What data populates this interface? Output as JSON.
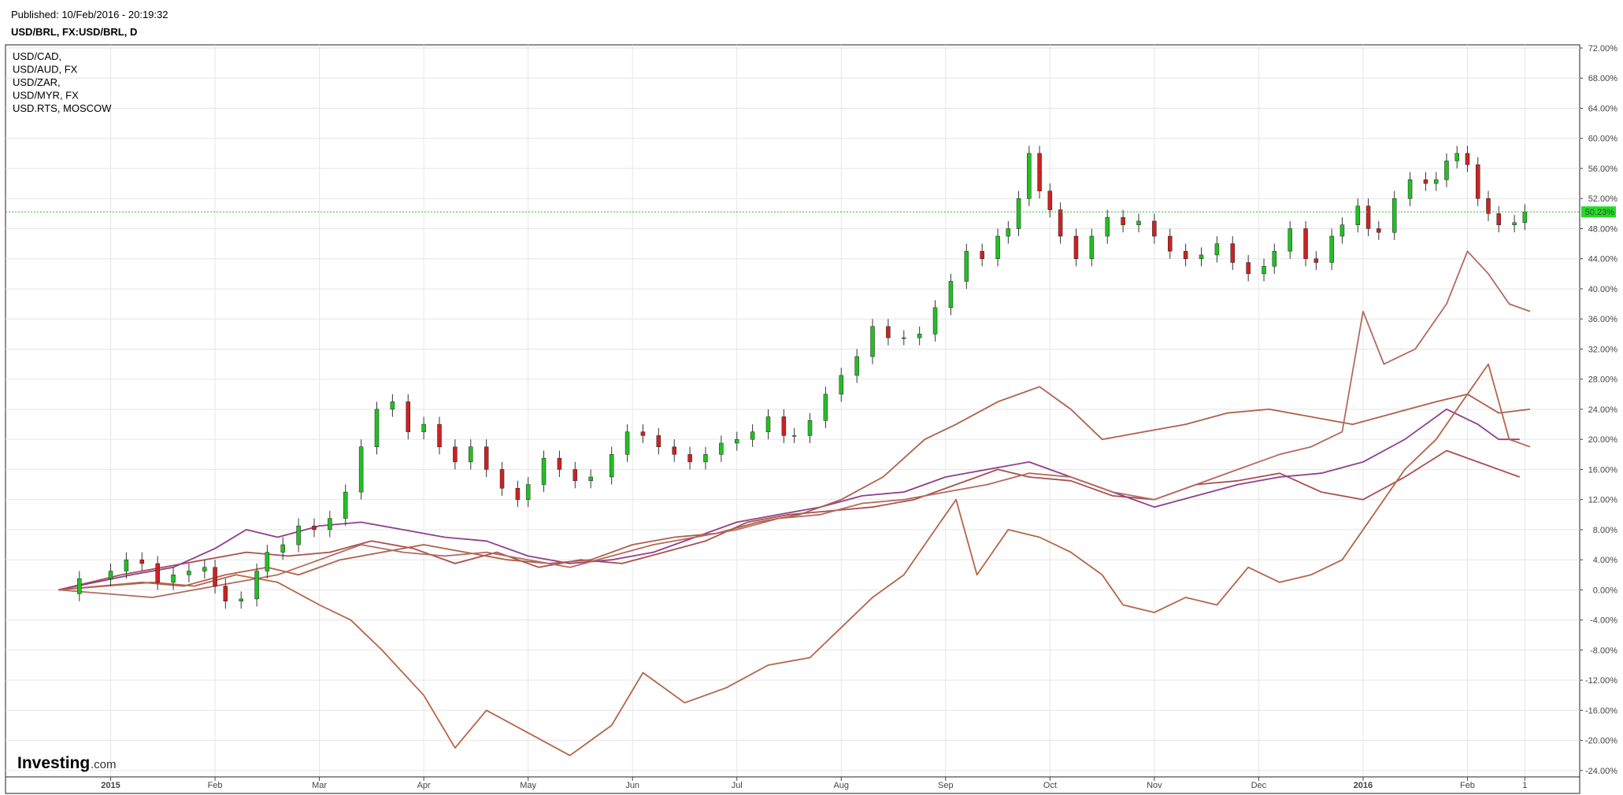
{
  "header": {
    "published": "Published: 10/Feb/2016 - 20:19:32",
    "symbol": "USD/BRL, FX:USD/BRL, D"
  },
  "logo": {
    "main": "Investing",
    "sub": ".com"
  },
  "current_badge": "50.23%",
  "chart_data": {
    "type": "candlestick+line",
    "title": "USD/BRL, FX:USD/BRL, D",
    "y_axis": {
      "unit": "%",
      "ylim": [
        -26,
        72
      ],
      "ticks": [
        "72.00%",
        "68.00%",
        "64.00%",
        "60.00%",
        "56.00%",
        "52.00%",
        "48.00%",
        "44.00%",
        "40.00%",
        "36.00%",
        "32.00%",
        "28.00%",
        "24.00%",
        "20.00%",
        "16.00%",
        "12.00%",
        "8.00%",
        "4.00%",
        "0.00%",
        "-4.00%",
        "-8.00%",
        "-12.00%",
        "-16.00%",
        "-20.00%",
        "-24.00%"
      ],
      "position": "right"
    },
    "x_axis": {
      "ticks": [
        {
          "label": "2015",
          "bold": true,
          "month": 0
        },
        {
          "label": "Feb",
          "bold": false,
          "month": 1
        },
        {
          "label": "Mar",
          "bold": false,
          "month": 2
        },
        {
          "label": "Apr",
          "bold": false,
          "month": 3
        },
        {
          "label": "May",
          "bold": false,
          "month": 4
        },
        {
          "label": "Jun",
          "bold": false,
          "month": 5
        },
        {
          "label": "Jul",
          "bold": false,
          "month": 6
        },
        {
          "label": "Aug",
          "bold": false,
          "month": 7
        },
        {
          "label": "Sep",
          "bold": false,
          "month": 8
        },
        {
          "label": "Oct",
          "bold": false,
          "month": 9
        },
        {
          "label": "Nov",
          "bold": false,
          "month": 10
        },
        {
          "label": "Dec",
          "bold": false,
          "month": 11
        },
        {
          "label": "2016",
          "bold": true,
          "month": 12
        },
        {
          "label": "Feb",
          "bold": false,
          "month": 13
        },
        {
          "label": "1",
          "bold": false,
          "month": 13.55
        }
      ]
    },
    "grid": true,
    "legend_position": "top-left",
    "current_value": 50.23,
    "candles": {
      "name": "USD/BRL",
      "up_color": "#22c022",
      "down_color": "#cc2222",
      "closes": [
        [
          -0.8,
          -0.5
        ],
        [
          -0.3,
          1.5
        ],
        [
          0.0,
          2.5
        ],
        [
          0.15,
          4.0
        ],
        [
          0.3,
          3.5
        ],
        [
          0.45,
          1.0
        ],
        [
          0.6,
          2.0
        ],
        [
          0.75,
          2.5
        ],
        [
          0.9,
          3.0
        ],
        [
          1.0,
          0.5
        ],
        [
          1.1,
          -1.5
        ],
        [
          1.25,
          -1.2
        ],
        [
          1.4,
          2.5
        ],
        [
          1.5,
          5.0
        ],
        [
          1.65,
          6.0
        ],
        [
          1.8,
          8.5
        ],
        [
          1.95,
          8.0
        ],
        [
          2.1,
          9.5
        ],
        [
          2.25,
          13.0
        ],
        [
          2.4,
          19.0
        ],
        [
          2.55,
          24.0
        ],
        [
          2.7,
          25.0
        ],
        [
          2.85,
          21.0
        ],
        [
          3.0,
          22.0
        ],
        [
          3.15,
          19.0
        ],
        [
          3.3,
          17.0
        ],
        [
          3.45,
          19.0
        ],
        [
          3.6,
          16.0
        ],
        [
          3.75,
          13.5
        ],
        [
          3.9,
          12.0
        ],
        [
          4.0,
          14.0
        ],
        [
          4.15,
          17.5
        ],
        [
          4.3,
          16.0
        ],
        [
          4.45,
          14.5
        ],
        [
          4.6,
          15.0
        ],
        [
          4.8,
          18.0
        ],
        [
          4.95,
          21.0
        ],
        [
          5.1,
          20.5
        ],
        [
          5.25,
          19.0
        ],
        [
          5.4,
          18.0
        ],
        [
          5.55,
          17.0
        ],
        [
          5.7,
          18.0
        ],
        [
          5.85,
          19.5
        ],
        [
          6.0,
          20.0
        ],
        [
          6.15,
          21.0
        ],
        [
          6.3,
          23.0
        ],
        [
          6.45,
          20.5
        ],
        [
          6.55,
          20.5
        ],
        [
          6.7,
          22.5
        ],
        [
          6.85,
          26.0
        ],
        [
          7.0,
          28.5
        ],
        [
          7.15,
          31.0
        ],
        [
          7.3,
          35.0
        ],
        [
          7.45,
          33.5
        ],
        [
          7.6,
          33.5
        ],
        [
          7.75,
          34.0
        ],
        [
          7.9,
          37.5
        ],
        [
          8.05,
          41.0
        ],
        [
          8.2,
          45.0
        ],
        [
          8.35,
          44.0
        ],
        [
          8.5,
          47.0
        ],
        [
          8.6,
          48.0
        ],
        [
          8.7,
          52.0
        ],
        [
          8.8,
          58.0
        ],
        [
          8.9,
          53.0
        ],
        [
          9.0,
          50.5
        ],
        [
          9.1,
          47.0
        ],
        [
          9.25,
          44.0
        ],
        [
          9.4,
          47.0
        ],
        [
          9.55,
          49.5
        ],
        [
          9.7,
          48.5
        ],
        [
          9.85,
          49.0
        ],
        [
          10.0,
          47.0
        ],
        [
          10.15,
          45.0
        ],
        [
          10.3,
          44.0
        ],
        [
          10.45,
          44.5
        ],
        [
          10.6,
          46.0
        ],
        [
          10.75,
          43.5
        ],
        [
          10.9,
          42.0
        ],
        [
          11.05,
          43.0
        ],
        [
          11.15,
          45.0
        ],
        [
          11.3,
          48.0
        ],
        [
          11.45,
          44.0
        ],
        [
          11.55,
          43.5
        ],
        [
          11.7,
          47.0
        ],
        [
          11.8,
          48.5
        ],
        [
          11.95,
          51.0
        ],
        [
          12.05,
          48.0
        ],
        [
          12.15,
          47.5
        ],
        [
          12.3,
          52.0
        ],
        [
          12.45,
          54.5
        ],
        [
          12.6,
          54.0
        ],
        [
          12.7,
          54.5
        ],
        [
          12.8,
          57.0
        ],
        [
          12.9,
          58.0
        ],
        [
          13.0,
          56.5
        ],
        [
          13.1,
          52.0
        ],
        [
          13.2,
          50.0
        ],
        [
          13.3,
          48.5
        ],
        [
          13.45,
          48.8
        ],
        [
          13.55,
          50.23
        ]
      ],
      "note": "x = months from Jan 1 2015 (approx); y = close value in %"
    },
    "series": [
      {
        "name": "USD/CAD,",
        "color": "#a94f4f",
        "points": [
          [
            -0.5,
            0
          ],
          [
            0.1,
            2
          ],
          [
            0.5,
            3
          ],
          [
            0.9,
            4
          ],
          [
            1.3,
            5
          ],
          [
            1.7,
            4.5
          ],
          [
            2.1,
            5
          ],
          [
            2.5,
            6.5
          ],
          [
            2.9,
            5.5
          ],
          [
            3.3,
            3.5
          ],
          [
            3.7,
            5
          ],
          [
            4.1,
            3
          ],
          [
            4.5,
            4
          ],
          [
            4.9,
            3.5
          ],
          [
            5.3,
            5
          ],
          [
            5.7,
            6.5
          ],
          [
            6.1,
            9
          ],
          [
            6.5,
            10
          ],
          [
            6.9,
            10.5
          ],
          [
            7.3,
            11
          ],
          [
            7.7,
            12
          ],
          [
            8.1,
            14
          ],
          [
            8.5,
            16
          ],
          [
            8.8,
            15
          ],
          [
            9.2,
            14.5
          ],
          [
            9.6,
            12.5
          ],
          [
            10.0,
            12
          ],
          [
            10.4,
            14
          ],
          [
            10.8,
            14.5
          ],
          [
            11.2,
            15.5
          ],
          [
            11.6,
            13
          ],
          [
            12.0,
            12
          ],
          [
            12.4,
            15
          ],
          [
            12.8,
            18.5
          ],
          [
            13.2,
            16.5
          ],
          [
            13.5,
            15
          ]
        ]
      },
      {
        "name": "USD/AUD, FX",
        "color": "#8e3f8e",
        "points": [
          [
            -0.5,
            0
          ],
          [
            0.2,
            2
          ],
          [
            0.6,
            3
          ],
          [
            1.0,
            5.5
          ],
          [
            1.3,
            8
          ],
          [
            1.6,
            7
          ],
          [
            2.0,
            8.5
          ],
          [
            2.4,
            9
          ],
          [
            2.8,
            8
          ],
          [
            3.2,
            7
          ],
          [
            3.6,
            6.5
          ],
          [
            4.0,
            4.5
          ],
          [
            4.4,
            3.5
          ],
          [
            4.8,
            4
          ],
          [
            5.2,
            5
          ],
          [
            5.6,
            7
          ],
          [
            6.0,
            9
          ],
          [
            6.4,
            10
          ],
          [
            6.8,
            11
          ],
          [
            7.2,
            12.5
          ],
          [
            7.6,
            13
          ],
          [
            8.0,
            15
          ],
          [
            8.4,
            16
          ],
          [
            8.8,
            17
          ],
          [
            9.2,
            15
          ],
          [
            9.6,
            13
          ],
          [
            10.0,
            11
          ],
          [
            10.4,
            12.5
          ],
          [
            10.8,
            14
          ],
          [
            11.2,
            15
          ],
          [
            11.6,
            15.5
          ],
          [
            12.0,
            17
          ],
          [
            12.4,
            20
          ],
          [
            12.8,
            24
          ],
          [
            13.1,
            22
          ],
          [
            13.3,
            20
          ],
          [
            13.5,
            20
          ]
        ]
      },
      {
        "name": "USD/ZAR,",
        "color": "#b0604a",
        "points": [
          [
            -0.5,
            0
          ],
          [
            0.3,
            1
          ],
          [
            0.7,
            0.5
          ],
          [
            1.1,
            2
          ],
          [
            1.5,
            3
          ],
          [
            1.8,
            2
          ],
          [
            2.2,
            4
          ],
          [
            2.6,
            5
          ],
          [
            3.0,
            6
          ],
          [
            3.4,
            5
          ],
          [
            3.8,
            4
          ],
          [
            4.2,
            3.5
          ],
          [
            4.6,
            4
          ],
          [
            5.0,
            6
          ],
          [
            5.4,
            7
          ],
          [
            5.8,
            7.5
          ],
          [
            6.2,
            9
          ],
          [
            6.6,
            10
          ],
          [
            7.0,
            12
          ],
          [
            7.4,
            15
          ],
          [
            7.8,
            20
          ],
          [
            8.1,
            22
          ],
          [
            8.5,
            25
          ],
          [
            8.9,
            27
          ],
          [
            9.2,
            24
          ],
          [
            9.5,
            20
          ],
          [
            9.9,
            21
          ],
          [
            10.3,
            22
          ],
          [
            10.7,
            23.5
          ],
          [
            11.1,
            24
          ],
          [
            11.5,
            23
          ],
          [
            11.9,
            22
          ],
          [
            12.3,
            23.5
          ],
          [
            12.7,
            25
          ],
          [
            13.0,
            26
          ],
          [
            13.3,
            23.5
          ],
          [
            13.6,
            24
          ]
        ]
      },
      {
        "name": "USD/MYR, FX",
        "color": "#b36a5e",
        "points": [
          [
            -0.5,
            0
          ],
          [
            0.4,
            -1
          ],
          [
            0.8,
            0
          ],
          [
            1.2,
            1
          ],
          [
            1.6,
            2
          ],
          [
            2.0,
            4
          ],
          [
            2.4,
            6
          ],
          [
            2.8,
            5
          ],
          [
            3.2,
            4.5
          ],
          [
            3.6,
            5
          ],
          [
            4.0,
            4
          ],
          [
            4.4,
            3
          ],
          [
            4.8,
            4.5
          ],
          [
            5.2,
            6
          ],
          [
            5.6,
            7
          ],
          [
            6.0,
            8
          ],
          [
            6.4,
            9.5
          ],
          [
            6.8,
            10
          ],
          [
            7.2,
            11.5
          ],
          [
            7.6,
            12
          ],
          [
            8.0,
            13
          ],
          [
            8.4,
            14
          ],
          [
            8.8,
            15.5
          ],
          [
            9.2,
            15
          ],
          [
            9.6,
            13
          ],
          [
            10.0,
            12
          ],
          [
            10.4,
            14
          ],
          [
            10.8,
            16
          ],
          [
            11.2,
            18
          ],
          [
            11.5,
            19
          ],
          [
            11.8,
            21
          ],
          [
            12.0,
            37
          ],
          [
            12.2,
            30
          ],
          [
            12.5,
            32
          ],
          [
            12.8,
            38
          ],
          [
            13.0,
            45
          ],
          [
            13.2,
            42
          ],
          [
            13.4,
            38
          ],
          [
            13.6,
            37
          ]
        ]
      },
      {
        "name": "USD.RTS, MOSCOW",
        "color": "#b5654a",
        "points": [
          [
            -0.5,
            0
          ],
          [
            0.4,
            1
          ],
          [
            0.8,
            0.5
          ],
          [
            1.2,
            2
          ],
          [
            1.6,
            1
          ],
          [
            2.0,
            -2
          ],
          [
            2.3,
            -4
          ],
          [
            2.6,
            -8
          ],
          [
            3.0,
            -14
          ],
          [
            3.3,
            -21
          ],
          [
            3.6,
            -16
          ],
          [
            4.0,
            -19
          ],
          [
            4.4,
            -22
          ],
          [
            4.8,
            -18
          ],
          [
            5.1,
            -11
          ],
          [
            5.5,
            -15
          ],
          [
            5.9,
            -13
          ],
          [
            6.3,
            -10
          ],
          [
            6.7,
            -9
          ],
          [
            7.0,
            -5
          ],
          [
            7.3,
            -1
          ],
          [
            7.6,
            2
          ],
          [
            7.9,
            8
          ],
          [
            8.1,
            12
          ],
          [
            8.3,
            2
          ],
          [
            8.6,
            8
          ],
          [
            8.9,
            7
          ],
          [
            9.2,
            5
          ],
          [
            9.5,
            2
          ],
          [
            9.7,
            -2
          ],
          [
            10.0,
            -3
          ],
          [
            10.3,
            -1
          ],
          [
            10.6,
            -2
          ],
          [
            10.9,
            3
          ],
          [
            11.2,
            1
          ],
          [
            11.5,
            2
          ],
          [
            11.8,
            4
          ],
          [
            12.1,
            10
          ],
          [
            12.4,
            16
          ],
          [
            12.7,
            20
          ],
          [
            13.0,
            26
          ],
          [
            13.2,
            30
          ],
          [
            13.4,
            20
          ],
          [
            13.6,
            19
          ]
        ]
      }
    ]
  }
}
